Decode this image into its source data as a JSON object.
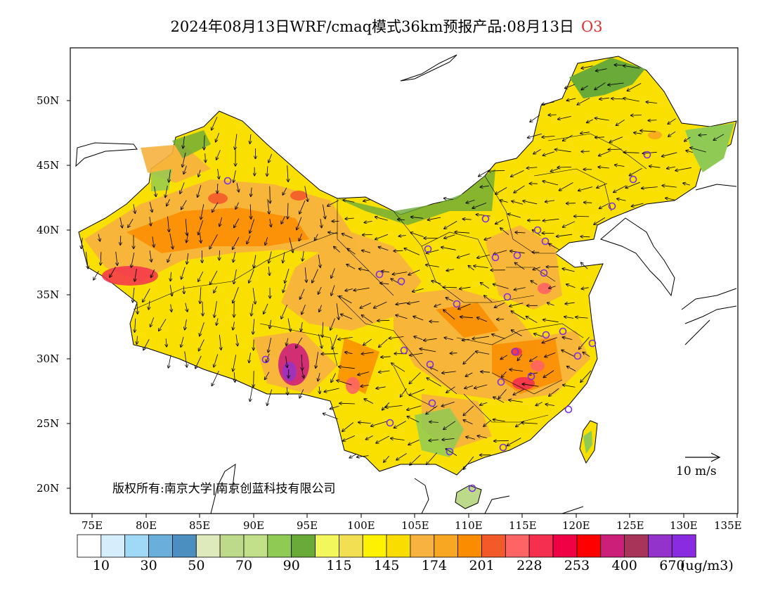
{
  "title": {
    "prefix": "2024年08月13日WRF/cmaq模式36km预报产品:08月13日",
    "species": "O3"
  },
  "copyright": "版权所有:南京大学|南京创蓝科技有限公司",
  "scale_label": "10  m/s",
  "lon_ticks": [
    "75E",
    "80E",
    "85E",
    "90E",
    "95E",
    "100E",
    "105E",
    "110E",
    "115E",
    "120E",
    "125E",
    "130E",
    "135E"
  ],
  "lat_ticks": [
    "50N",
    "45N",
    "40N",
    "35N",
    "30N",
    "25N",
    "20N"
  ],
  "colorbar": {
    "colors": [
      "#ffffff",
      "#d6eefc",
      "#9fd9f5",
      "#6aaedc",
      "#4a8fc0",
      "#dfeabc",
      "#bdd98a",
      "#c2e08a",
      "#8fca55",
      "#6aaa38",
      "#f2f75c",
      "#f2e052",
      "#fff200",
      "#f9dc00",
      "#f7b240",
      "#f7a722",
      "#fb8c00",
      "#f25a2a",
      "#ff6464",
      "#f5304e",
      "#f00044",
      "#ff0000",
      "#cc1f7a",
      "#a8345a",
      "#9333cc",
      "#8a2be2"
    ],
    "labels": [
      "10",
      "30",
      "50",
      "70",
      "90",
      "115",
      "145",
      "174",
      "201",
      "228",
      "253",
      "400",
      "670"
    ],
    "unit": "(ug/m3)"
  }
}
